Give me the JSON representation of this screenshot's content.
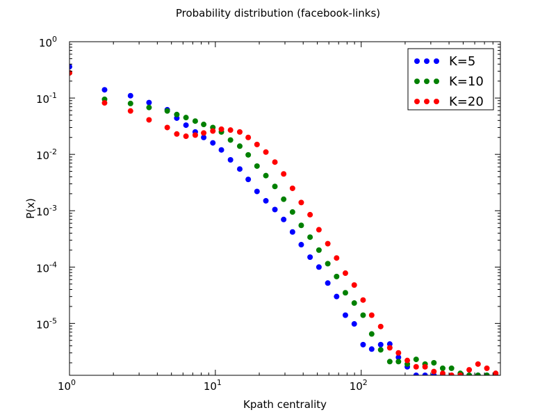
{
  "chart_data": {
    "type": "scatter",
    "title": "Probability distribution (facebook-links)",
    "xlabel": "Kpath centrality",
    "ylabel": "P(x)",
    "xscale": "log",
    "yscale": "log",
    "xlim": [
      1,
      900
    ],
    "ylim": [
      1.2e-06,
      1
    ],
    "grid": false,
    "legend_position": "top-right",
    "x_ticks": [
      {
        "base": "10",
        "exp": "0"
      },
      {
        "base": "10",
        "exp": "1"
      },
      {
        "base": "10",
        "exp": "2"
      }
    ],
    "y_ticks": [
      {
        "base": "10",
        "exp": "0"
      },
      {
        "base": "10",
        "exp": "-1"
      },
      {
        "base": "10",
        "exp": "-2"
      },
      {
        "base": "10",
        "exp": "-3"
      },
      {
        "base": "10",
        "exp": "-4"
      },
      {
        "base": "10",
        "exp": "-5"
      }
    ],
    "series": [
      {
        "name": "K=5",
        "color": "#0000ff",
        "x": [
          1,
          1.74,
          2.62,
          3.51,
          4.68,
          5.44,
          6.29,
          7.28,
          8.32,
          9.61,
          11.0,
          12.7,
          14.7,
          16.8,
          19.3,
          22.2,
          25.6,
          29.4,
          33.8,
          38.8,
          44.6,
          51.3,
          59.0,
          67.8,
          77.9,
          89.6,
          103,
          118,
          136,
          157,
          180,
          207,
          238,
          274,
          315,
          362,
          416,
          478,
          550,
          632,
          727,
          836
        ],
        "y": [
          0.36,
          0.14,
          0.11,
          0.083,
          0.062,
          0.044,
          0.033,
          0.025,
          0.02,
          0.016,
          0.012,
          0.008,
          0.0055,
          0.0036,
          0.0022,
          0.0015,
          0.00105,
          0.0007,
          0.00042,
          0.00025,
          0.00015,
          0.0001,
          5.2e-05,
          3e-05,
          1.4e-05,
          9.8e-06,
          4.2e-06,
          3.5e-06,
          4.2e-06,
          4.3e-06,
          2.5e-06,
          1.7e-06,
          1.2e-06,
          1.2e-06,
          1.2e-06,
          1.2e-06,
          1.2e-06,
          1.2e-06,
          1.2e-06,
          1.2e-06,
          1.2e-06,
          1.2e-06
        ]
      },
      {
        "name": "K=10",
        "color": "#008000",
        "x": [
          1,
          1.74,
          2.62,
          3.51,
          4.68,
          5.44,
          6.29,
          7.28,
          8.32,
          9.61,
          11.0,
          12.7,
          14.7,
          16.8,
          19.3,
          22.2,
          25.6,
          29.4,
          33.8,
          38.8,
          44.6,
          51.3,
          59.0,
          67.8,
          77.9,
          89.6,
          103,
          118,
          136,
          157,
          180,
          207,
          238,
          274,
          315,
          362,
          416,
          478,
          550,
          632,
          727,
          836
        ],
        "y": [
          0.28,
          0.095,
          0.08,
          0.068,
          0.059,
          0.051,
          0.045,
          0.039,
          0.034,
          0.03,
          0.025,
          0.018,
          0.014,
          0.0098,
          0.0062,
          0.0042,
          0.0027,
          0.0016,
          0.00095,
          0.00055,
          0.00034,
          0.0002,
          0.000115,
          6.8e-05,
          3.5e-05,
          2.3e-05,
          1.4e-05,
          6.5e-06,
          3.4e-06,
          2.1e-06,
          2.1e-06,
          1.9e-06,
          2.3e-06,
          1.9e-06,
          2e-06,
          1.6e-06,
          1.6e-06,
          1.3e-06,
          1.2e-06,
          1.2e-06,
          1.2e-06,
          1.2e-06
        ]
      },
      {
        "name": "K=20",
        "color": "#ff0000",
        "x": [
          1,
          1.74,
          2.62,
          3.51,
          4.68,
          5.44,
          6.29,
          7.28,
          8.32,
          9.61,
          11.0,
          12.7,
          14.7,
          16.8,
          19.3,
          22.2,
          25.6,
          29.4,
          33.8,
          38.8,
          44.6,
          51.3,
          59.0,
          67.8,
          77.9,
          89.6,
          103,
          118,
          136,
          157,
          180,
          207,
          238,
          274,
          315,
          362,
          416,
          478,
          550,
          632,
          727,
          836
        ],
        "y": [
          0.28,
          0.082,
          0.059,
          0.041,
          0.03,
          0.023,
          0.021,
          0.022,
          0.024,
          0.026,
          0.028,
          0.027,
          0.025,
          0.02,
          0.015,
          0.011,
          0.0073,
          0.0045,
          0.0025,
          0.0014,
          0.00085,
          0.00046,
          0.00026,
          0.000145,
          7.8e-05,
          4.8e-05,
          2.6e-05,
          1.4e-05,
          8.8e-06,
          3.7e-06,
          3e-06,
          2.2e-06,
          1.7e-06,
          1.7e-06,
          1.4e-06,
          1.3e-06,
          1.2e-06,
          1.2e-06,
          1.5e-06,
          1.9e-06,
          1.6e-06,
          1.3e-06
        ]
      }
    ]
  }
}
